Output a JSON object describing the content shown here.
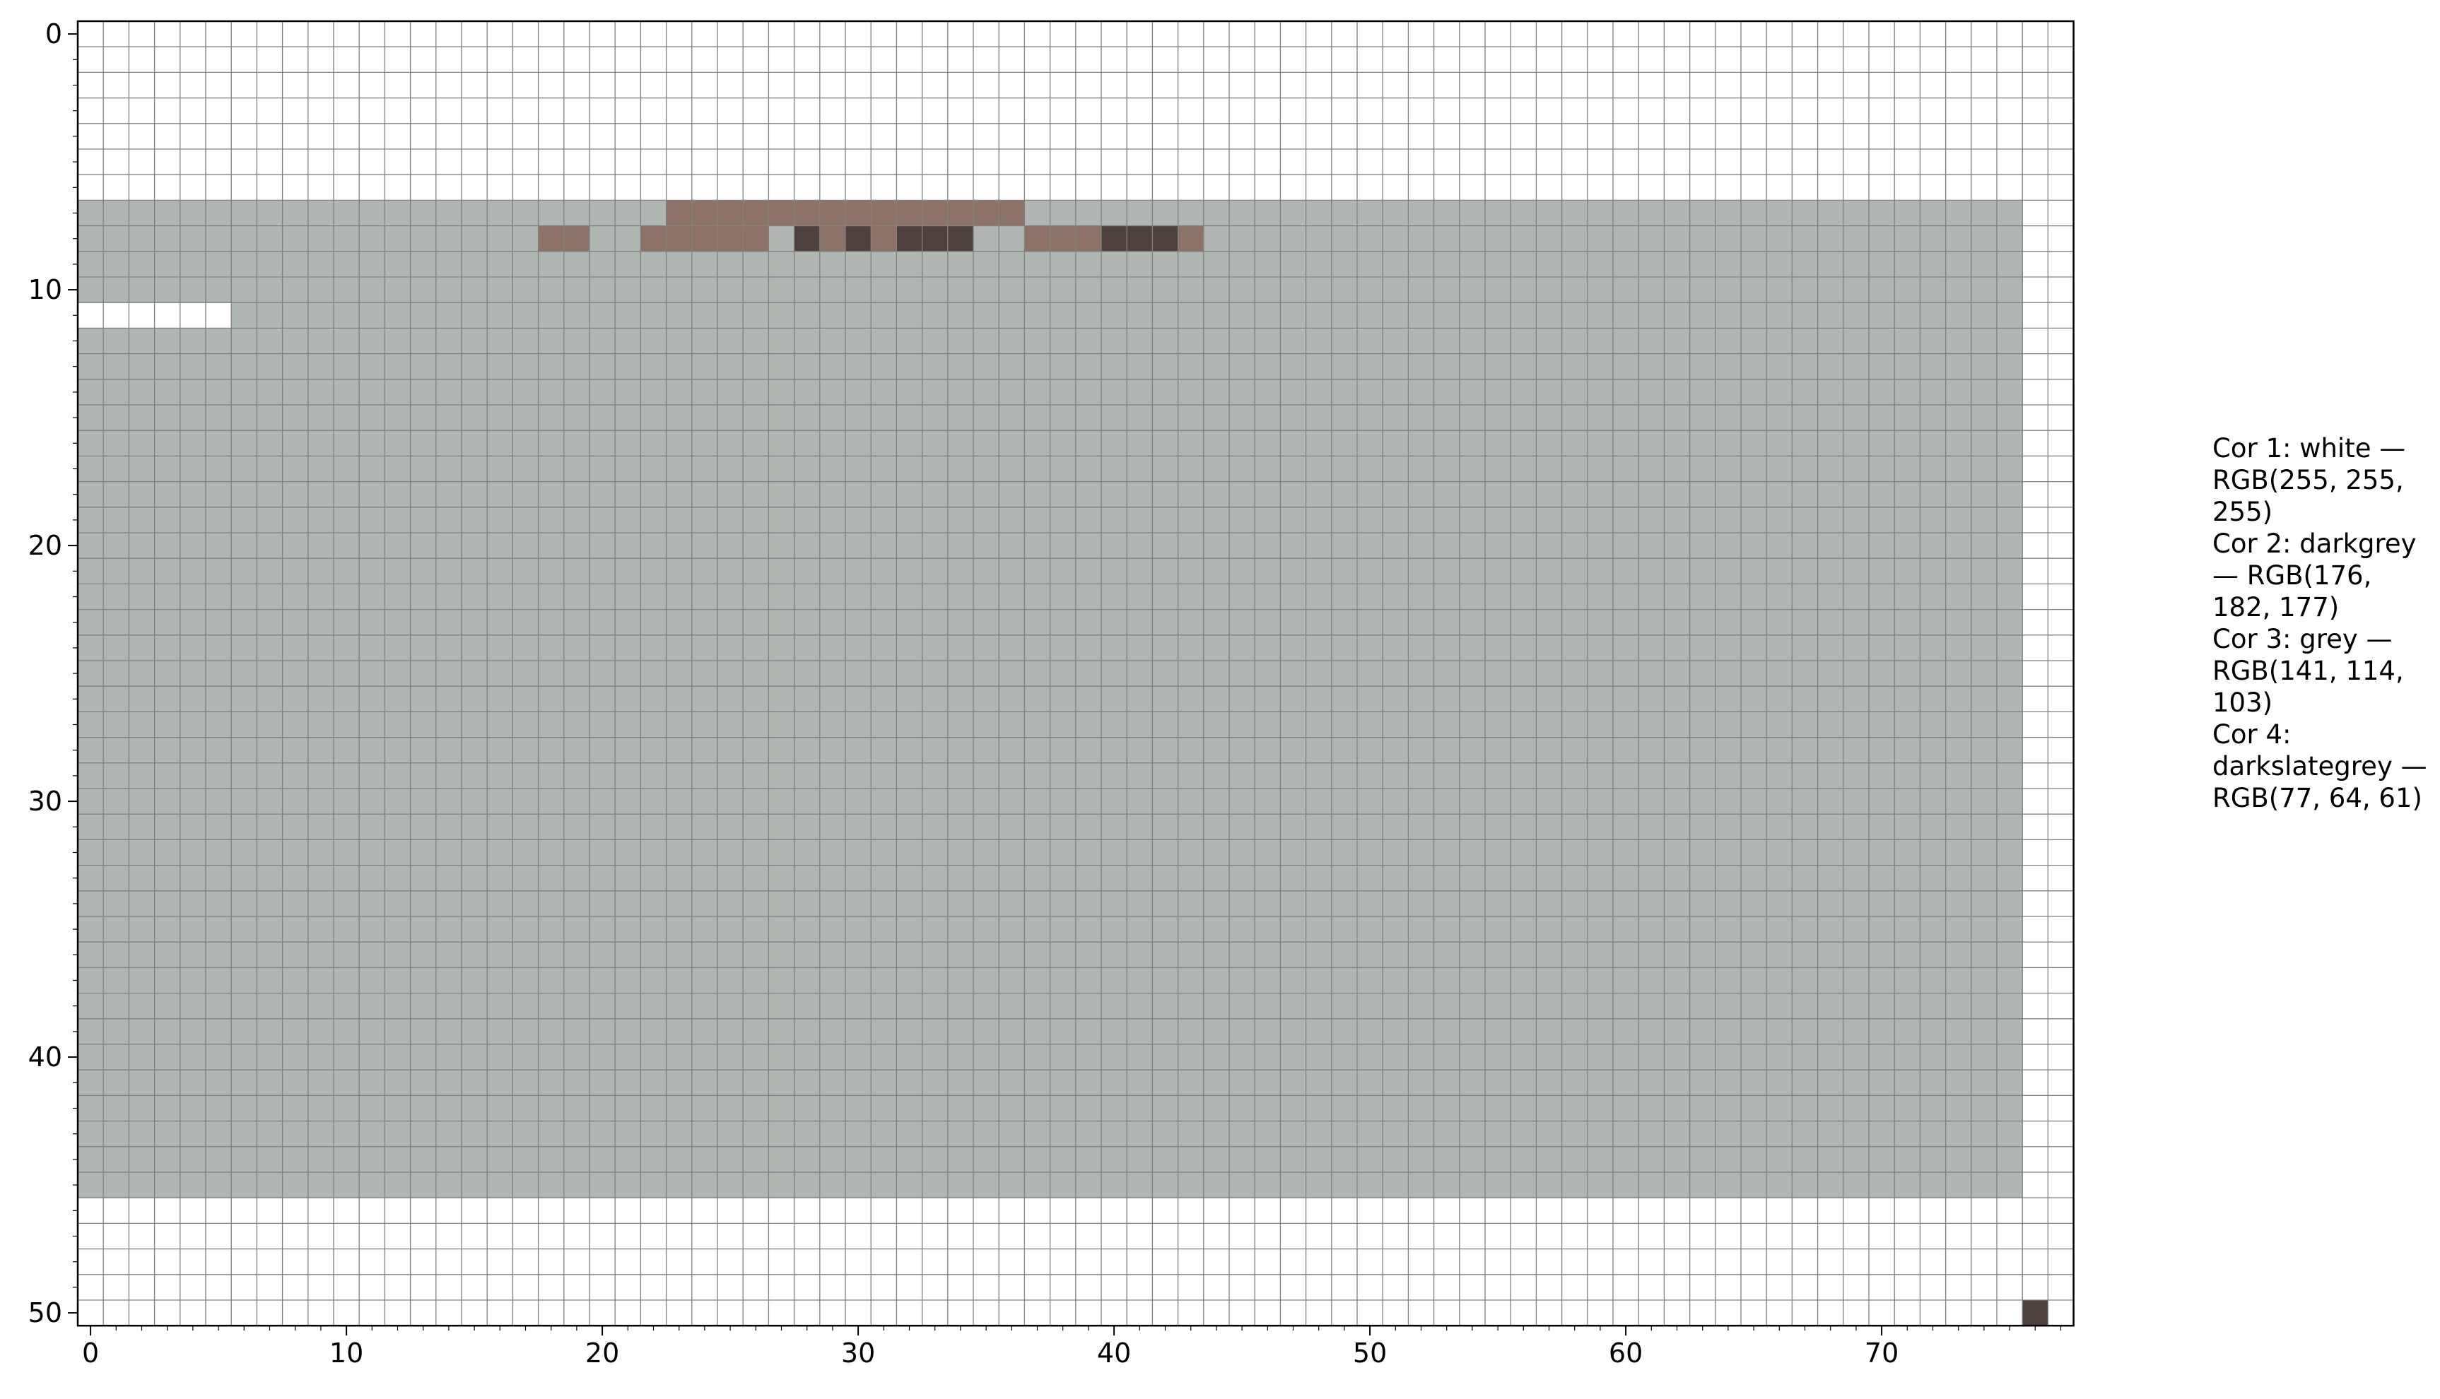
{
  "palette": [
    {
      "label": "Cor 1: white — RGB(255, 255, 255)",
      "hex": "#ffffff"
    },
    {
      "label": "Cor 2: darkgrey — RGB(176, 182, 177)",
      "hex": "#b0b6b1"
    },
    {
      "label": "Cor 3: grey — RGB(141, 114, 103)",
      "hex": "#8d7267"
    },
    {
      "label": "Cor 4: darkslategrey — RGB(77, 64, 61)",
      "hex": "#4d403d"
    }
  ],
  "axes": {
    "x_ticks": [
      "0",
      "10",
      "20",
      "30",
      "40",
      "50",
      "60",
      "70"
    ],
    "y_ticks": [
      "0",
      "10",
      "20",
      "30",
      "40",
      "50"
    ]
  },
  "grid": {
    "columns": 78,
    "rows": 51,
    "gridlines": true,
    "line_color": "#808080"
  },
  "mosaic_palette_index_rows_7_to_45": [
    "1111111111111111111111122222222222222111111111111111111111111111111111111111",
    "1111111111111111112211222221323233311222333211111111111111111111111111111111",
    "1111111111111111111111111111111111111111111111111111111111111111111111111111",
    "1111111111111111111111111111111111111111111111111111111111111111111111111111",
    "0000001111111111111111111111111111111111111111111111111111111111111111111111",
    "1111111111111111111111111111111111111111111111111111111111111111111111111111",
    "1111111111111111111111111111111111111111111111111111111111111111111111111111",
    "1111111111111111111111111111111111111111111111111111111111111111111111111111",
    "1111111111111111111111111111111111111111111111111111111111111111111111111111",
    "1111111111111111111111111111111111111111111111111111111111111111111111111111",
    "1111111111111111111111111111111111111111111111111111111111111111111111111111",
    "1111111111111111111111111111111111111111111111111111111111111111111111111111",
    "1111111111111111111111111111111111111111111111111111111111111111111111111111",
    "1111111111111111111111111111111111111111111111111111111111111111111111111111",
    "1111111111111111111111111111111111111111111111111111111111111111111111111111",
    "1111111111111111111111111111111111111111111111111111111111111111111111111111",
    "1111111111111111111111111111111111111111111111111111111111111111111111111111",
    "1111111111111111111111111111111111111111111111111111111111111111111111111111",
    "1111111111111111111111111111111111111111111111111111111111111111111111111111",
    "1111111111111111111111111111111111111111111111111111111111111111111111111111",
    "1111111111111111111111111111111111111111111111111111111111111111111111111111",
    "1111111111111111111111111111111111111111111111111111111111111111111111111111",
    "1111111111111111111111111111111111111111111111111111111111111111111111111111",
    "1111111111111111111111111111111111111111111111111111111111111111111111111111",
    "1111111111111111111111111111111111111111111111111111111111111111111111111111",
    "1111111111111111111111111111111111111111111111111111111111111111111111111111",
    "1111111111111111111111111111111111111111111111111111111111111111111111111111",
    "1111111111111111111111111111111111111111111111111111111111111111111111111111",
    "1111111111111111111111111111111111111111111111111111111111111111111111111111",
    "1111111111111111111111111111111111111111111111111111111111111111111111111111",
    "1111111111111111111111111111111111111111111111111111111111111111111111111111",
    "1111111111111111111111111111111111111111111111111111111111111111111111111111",
    "1111111111111111111111111111111111111111111111111111111111111111111111111111",
    "1111111111111111111111111111111111111111111111111111111111111111111111111111",
    "1111111111111111111111111111111111111111111111111111111111111111111111111111",
    "1111111111111111111111111111111111111111111111111111111111111111111111111111",
    "1111111111111111111111111111111111111111111111111111111111111111111111111111",
    "1111111111111111111111111111111111111111111111111111111111111111111111111111",
    "1111111111111111111111111111111111111111111111111111111111111111111111111111"
  ]
}
